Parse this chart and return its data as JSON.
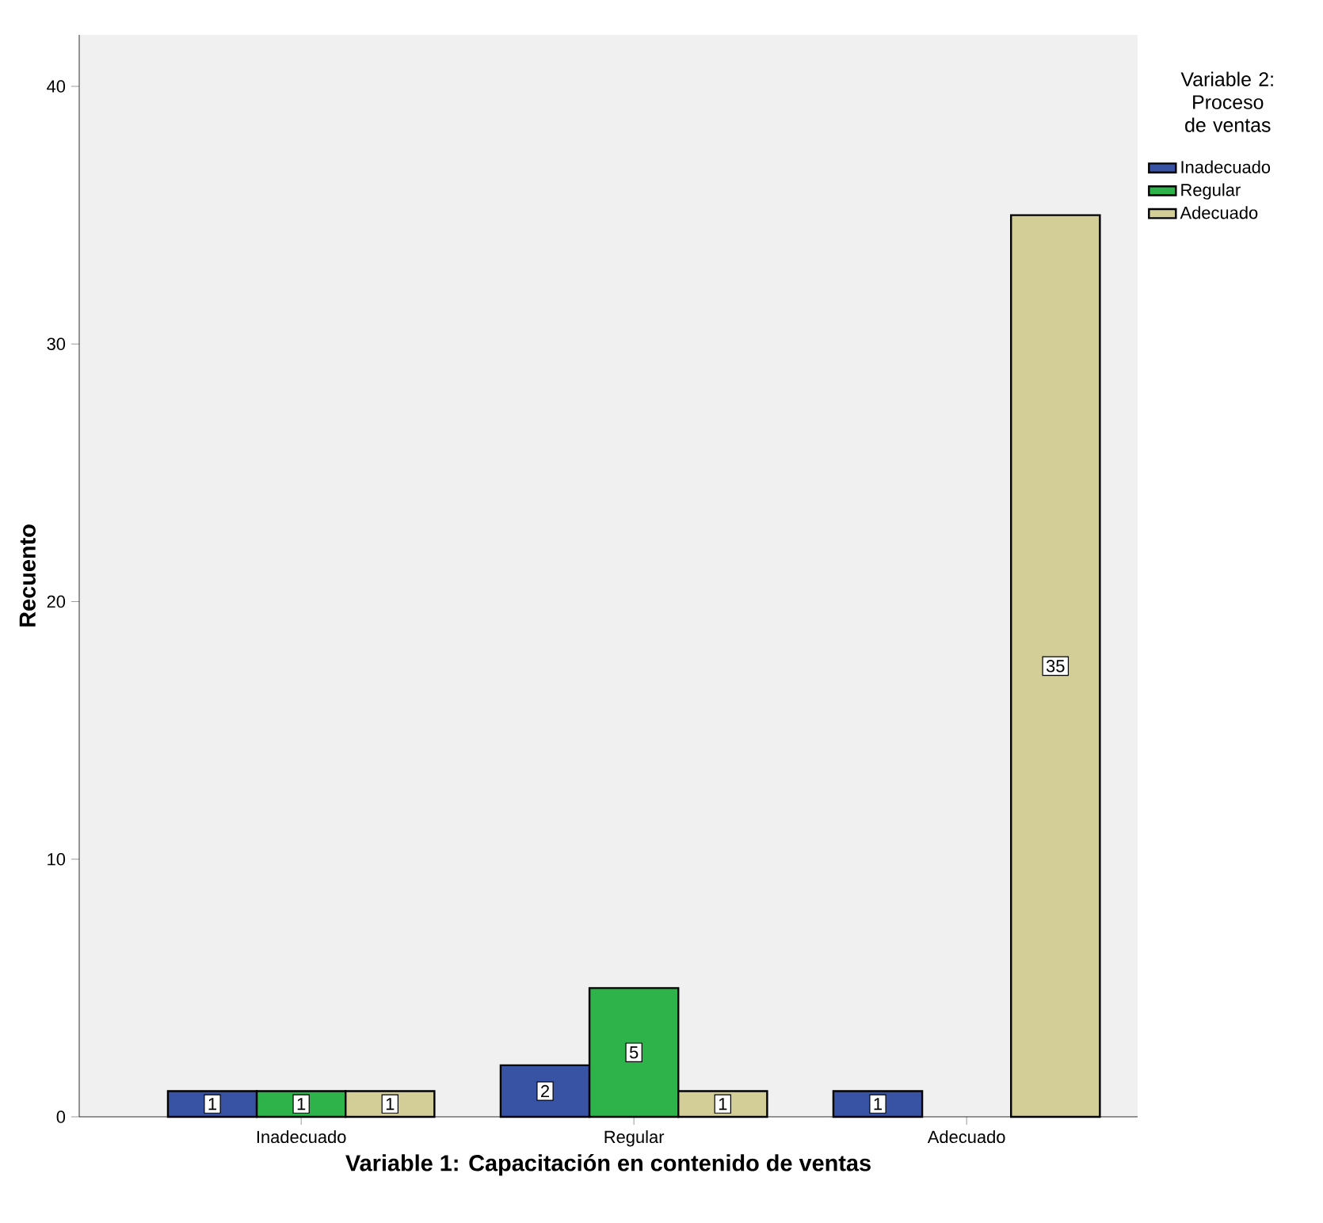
{
  "chart_data": {
    "type": "bar",
    "xlabel": "Variable 1: Capacitación en contenido de ventas",
    "ylabel": "Recuento",
    "legend_title": "Variable 2: Proceso de ventas",
    "categories": [
      "Inadecuado",
      "Regular",
      "Adecuado"
    ],
    "series": [
      {
        "name": "Inadecuado",
        "color": "#3953a4",
        "values": [
          1,
          2,
          1
        ]
      },
      {
        "name": "Regular",
        "color": "#2db34a",
        "values": [
          1,
          5,
          null
        ]
      },
      {
        "name": "Adecuado",
        "color": "#d3ce97",
        "values": [
          1,
          1,
          35
        ]
      }
    ],
    "ylim": [
      0,
      42
    ],
    "yticks": [
      0,
      10,
      20,
      30,
      40
    ],
    "data_labels": true,
    "legend": "right"
  }
}
